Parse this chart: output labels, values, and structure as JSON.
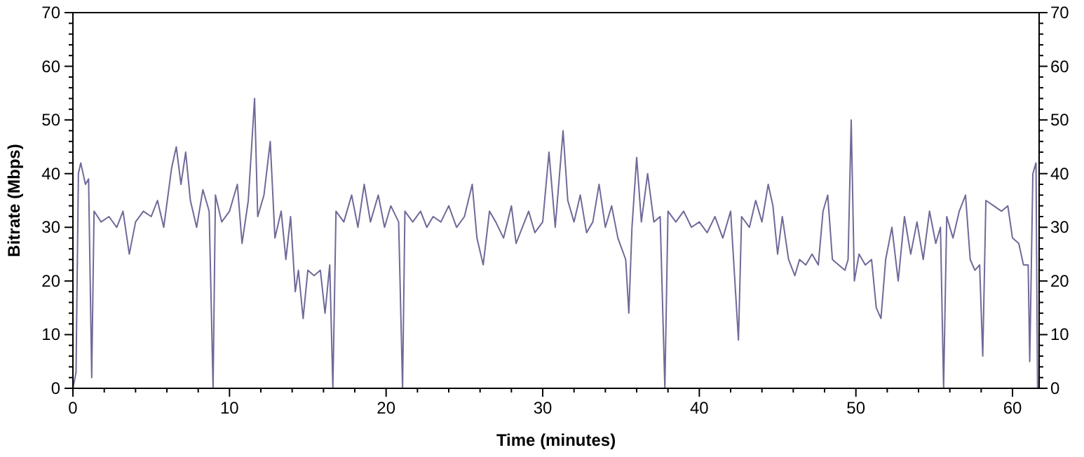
{
  "chart_data": {
    "type": "line",
    "xlabel": "Time (minutes)",
    "ylabel": "Bitrate (Mbps)",
    "xlim": [
      0,
      61.7
    ],
    "ylim": [
      0,
      70
    ],
    "y2lim": [
      0,
      70
    ],
    "xticks": [
      0,
      {
        "value": 2,
        "label": null
      },
      {
        "value": 4,
        "label": null
      },
      {
        "value": 6,
        "label": null
      },
      {
        "value": 8,
        "label": null
      },
      10,
      {
        "value": 12,
        "label": null
      },
      {
        "value": 14,
        "label": null
      },
      {
        "value": 16,
        "label": null
      },
      {
        "value": 18,
        "label": null
      },
      20,
      {
        "value": 22,
        "label": null
      },
      {
        "value": 24,
        "label": null
      },
      {
        "value": 26,
        "label": null
      },
      {
        "value": 28,
        "label": null
      },
      30,
      {
        "value": 32,
        "label": null
      },
      {
        "value": 34,
        "label": null
      },
      {
        "value": 36,
        "label": null
      },
      {
        "value": 38,
        "label": null
      },
      40,
      {
        "value": 42,
        "label": null
      },
      {
        "value": 44,
        "label": null
      },
      {
        "value": 46,
        "label": null
      },
      {
        "value": 48,
        "label": null
      },
      50,
      {
        "value": 52,
        "label": null
      },
      {
        "value": 54,
        "label": null
      },
      {
        "value": 56,
        "label": null
      },
      {
        "value": 58,
        "label": null
      },
      60
    ],
    "yticks": [
      0,
      {
        "value": 2,
        "label": null
      },
      {
        "value": 4,
        "label": null
      },
      {
        "value": 6,
        "label": null
      },
      {
        "value": 8,
        "label": null
      },
      10,
      {
        "value": 12,
        "label": null
      },
      {
        "value": 14,
        "label": null
      },
      {
        "value": 16,
        "label": null
      },
      {
        "value": 18,
        "label": null
      },
      20,
      {
        "value": 22,
        "label": null
      },
      {
        "value": 24,
        "label": null
      },
      {
        "value": 26,
        "label": null
      },
      {
        "value": 28,
        "label": null
      },
      30,
      {
        "value": 32,
        "label": null
      },
      {
        "value": 34,
        "label": null
      },
      {
        "value": 36,
        "label": null
      },
      {
        "value": 38,
        "label": null
      },
      40,
      {
        "value": 42,
        "label": null
      },
      {
        "value": 44,
        "label": null
      },
      {
        "value": 46,
        "label": null
      },
      {
        "value": 48,
        "label": null
      },
      50,
      {
        "value": 52,
        "label": null
      },
      {
        "value": 54,
        "label": null
      },
      {
        "value": 56,
        "label": null
      },
      {
        "value": 58,
        "label": null
      },
      60,
      {
        "value": 62,
        "label": null
      },
      {
        "value": 64,
        "label": null
      },
      {
        "value": 66,
        "label": null
      },
      {
        "value": 68,
        "label": null
      },
      70
    ],
    "y2ticks": [
      0,
      {
        "value": 2,
        "label": null
      },
      {
        "value": 4,
        "label": null
      },
      {
        "value": 6,
        "label": null
      },
      {
        "value": 8,
        "label": null
      },
      10,
      {
        "value": 12,
        "label": null
      },
      {
        "value": 14,
        "label": null
      },
      {
        "value": 16,
        "label": null
      },
      {
        "value": 18,
        "label": null
      },
      20,
      {
        "value": 22,
        "label": null
      },
      {
        "value": 24,
        "label": null
      },
      {
        "value": 26,
        "label": null
      },
      {
        "value": 28,
        "label": null
      },
      30,
      {
        "value": 32,
        "label": null
      },
      {
        "value": 34,
        "label": null
      },
      {
        "value": 36,
        "label": null
      },
      {
        "value": 38,
        "label": null
      },
      40,
      {
        "value": 42,
        "label": null
      },
      {
        "value": 44,
        "label": null
      },
      {
        "value": 46,
        "label": null
      },
      {
        "value": 48,
        "label": null
      },
      50,
      {
        "value": 52,
        "label": null
      },
      {
        "value": 54,
        "label": null
      },
      {
        "value": 56,
        "label": null
      },
      {
        "value": 58,
        "label": null
      },
      60,
      {
        "value": 62,
        "label": null
      },
      {
        "value": 64,
        "label": null
      },
      {
        "value": 66,
        "label": null
      },
      {
        "value": 68,
        "label": null
      },
      70
    ],
    "grid": false,
    "marker": "none",
    "line_style": "solid",
    "x": [
      0,
      0.2,
      0.35,
      0.5,
      0.8,
      1.0,
      1.2,
      1.35,
      1.8,
      2.3,
      2.8,
      3.2,
      3.6,
      4.0,
      4.5,
      5.0,
      5.4,
      5.8,
      6.3,
      6.6,
      6.9,
      7.2,
      7.5,
      7.9,
      8.3,
      8.7,
      8.95,
      9.1,
      9.5,
      10.0,
      10.5,
      10.8,
      11.2,
      11.6,
      11.8,
      12.2,
      12.6,
      12.9,
      13.3,
      13.6,
      13.9,
      14.2,
      14.4,
      14.7,
      15.0,
      15.4,
      15.8,
      16.1,
      16.4,
      16.6,
      16.8,
      17.3,
      17.8,
      18.2,
      18.6,
      19.0,
      19.5,
      19.9,
      20.3,
      20.8,
      21.05,
      21.2,
      21.7,
      22.2,
      22.6,
      23.0,
      23.5,
      24.0,
      24.5,
      25.0,
      25.5,
      25.8,
      26.2,
      26.6,
      27.0,
      27.5,
      28.0,
      28.3,
      28.7,
      29.1,
      29.5,
      30.0,
      30.4,
      30.8,
      31.3,
      31.6,
      32.0,
      32.4,
      32.8,
      33.2,
      33.6,
      34.0,
      34.4,
      34.8,
      35.3,
      35.5,
      35.7,
      36.0,
      36.3,
      36.7,
      37.1,
      37.5,
      37.8,
      38.0,
      38.5,
      39.0,
      39.5,
      40.0,
      40.5,
      41.0,
      41.5,
      42.0,
      42.5,
      42.7,
      43.2,
      43.6,
      44.0,
      44.4,
      44.7,
      45.0,
      45.3,
      45.7,
      46.1,
      46.4,
      46.8,
      47.2,
      47.6,
      47.9,
      48.2,
      48.5,
      48.9,
      49.3,
      49.5,
      49.7,
      49.9,
      50.2,
      50.6,
      51.0,
      51.3,
      51.6,
      51.9,
      52.3,
      52.7,
      53.1,
      53.5,
      53.9,
      54.3,
      54.7,
      55.1,
      55.4,
      55.6,
      55.8,
      56.2,
      56.6,
      57.0,
      57.3,
      57.6,
      57.9,
      58.1,
      58.3,
      58.8,
      59.3,
      59.7,
      60.0,
      60.4,
      60.7,
      61.0,
      61.1,
      61.3,
      61.5,
      61.6
    ],
    "series": [
      {
        "color": "#6f6a98",
        "values": [
          0,
          3,
          40,
          42,
          38,
          39,
          2,
          33,
          31,
          32,
          30,
          33,
          25,
          31,
          33,
          32,
          35,
          30,
          41,
          45,
          38,
          44,
          35,
          30,
          37,
          33,
          0,
          36,
          31,
          33,
          38,
          27,
          35,
          54,
          32,
          36,
          46,
          28,
          33,
          24,
          32,
          18,
          22,
          13,
          22,
          21,
          22,
          14,
          23,
          0,
          33,
          31,
          36,
          30,
          38,
          31,
          36,
          30,
          34,
          31,
          0,
          33,
          31,
          33,
          30,
          32,
          31,
          34,
          30,
          32,
          38,
          28,
          23,
          33,
          31,
          28,
          34,
          27,
          30,
          33,
          29,
          31,
          44,
          30,
          48,
          35,
          31,
          36,
          29,
          31,
          38,
          30,
          34,
          28,
          24,
          14,
          30,
          43,
          31,
          40,
          31,
          32,
          0,
          33,
          31,
          33,
          30,
          31,
          29,
          32,
          28,
          33,
          9,
          32,
          30,
          35,
          31,
          38,
          34,
          25,
          32,
          24,
          21,
          24,
          23,
          25,
          23,
          33,
          36,
          24,
          23,
          22,
          24,
          50,
          20,
          25,
          23,
          24,
          15,
          13,
          24,
          30,
          20,
          32,
          25,
          31,
          24,
          33,
          27,
          30,
          0,
          32,
          28,
          33,
          36,
          24,
          22,
          23,
          6,
          35,
          34,
          33,
          34,
          28,
          27,
          23,
          23,
          5,
          40,
          42,
          0
        ]
      }
    ]
  }
}
